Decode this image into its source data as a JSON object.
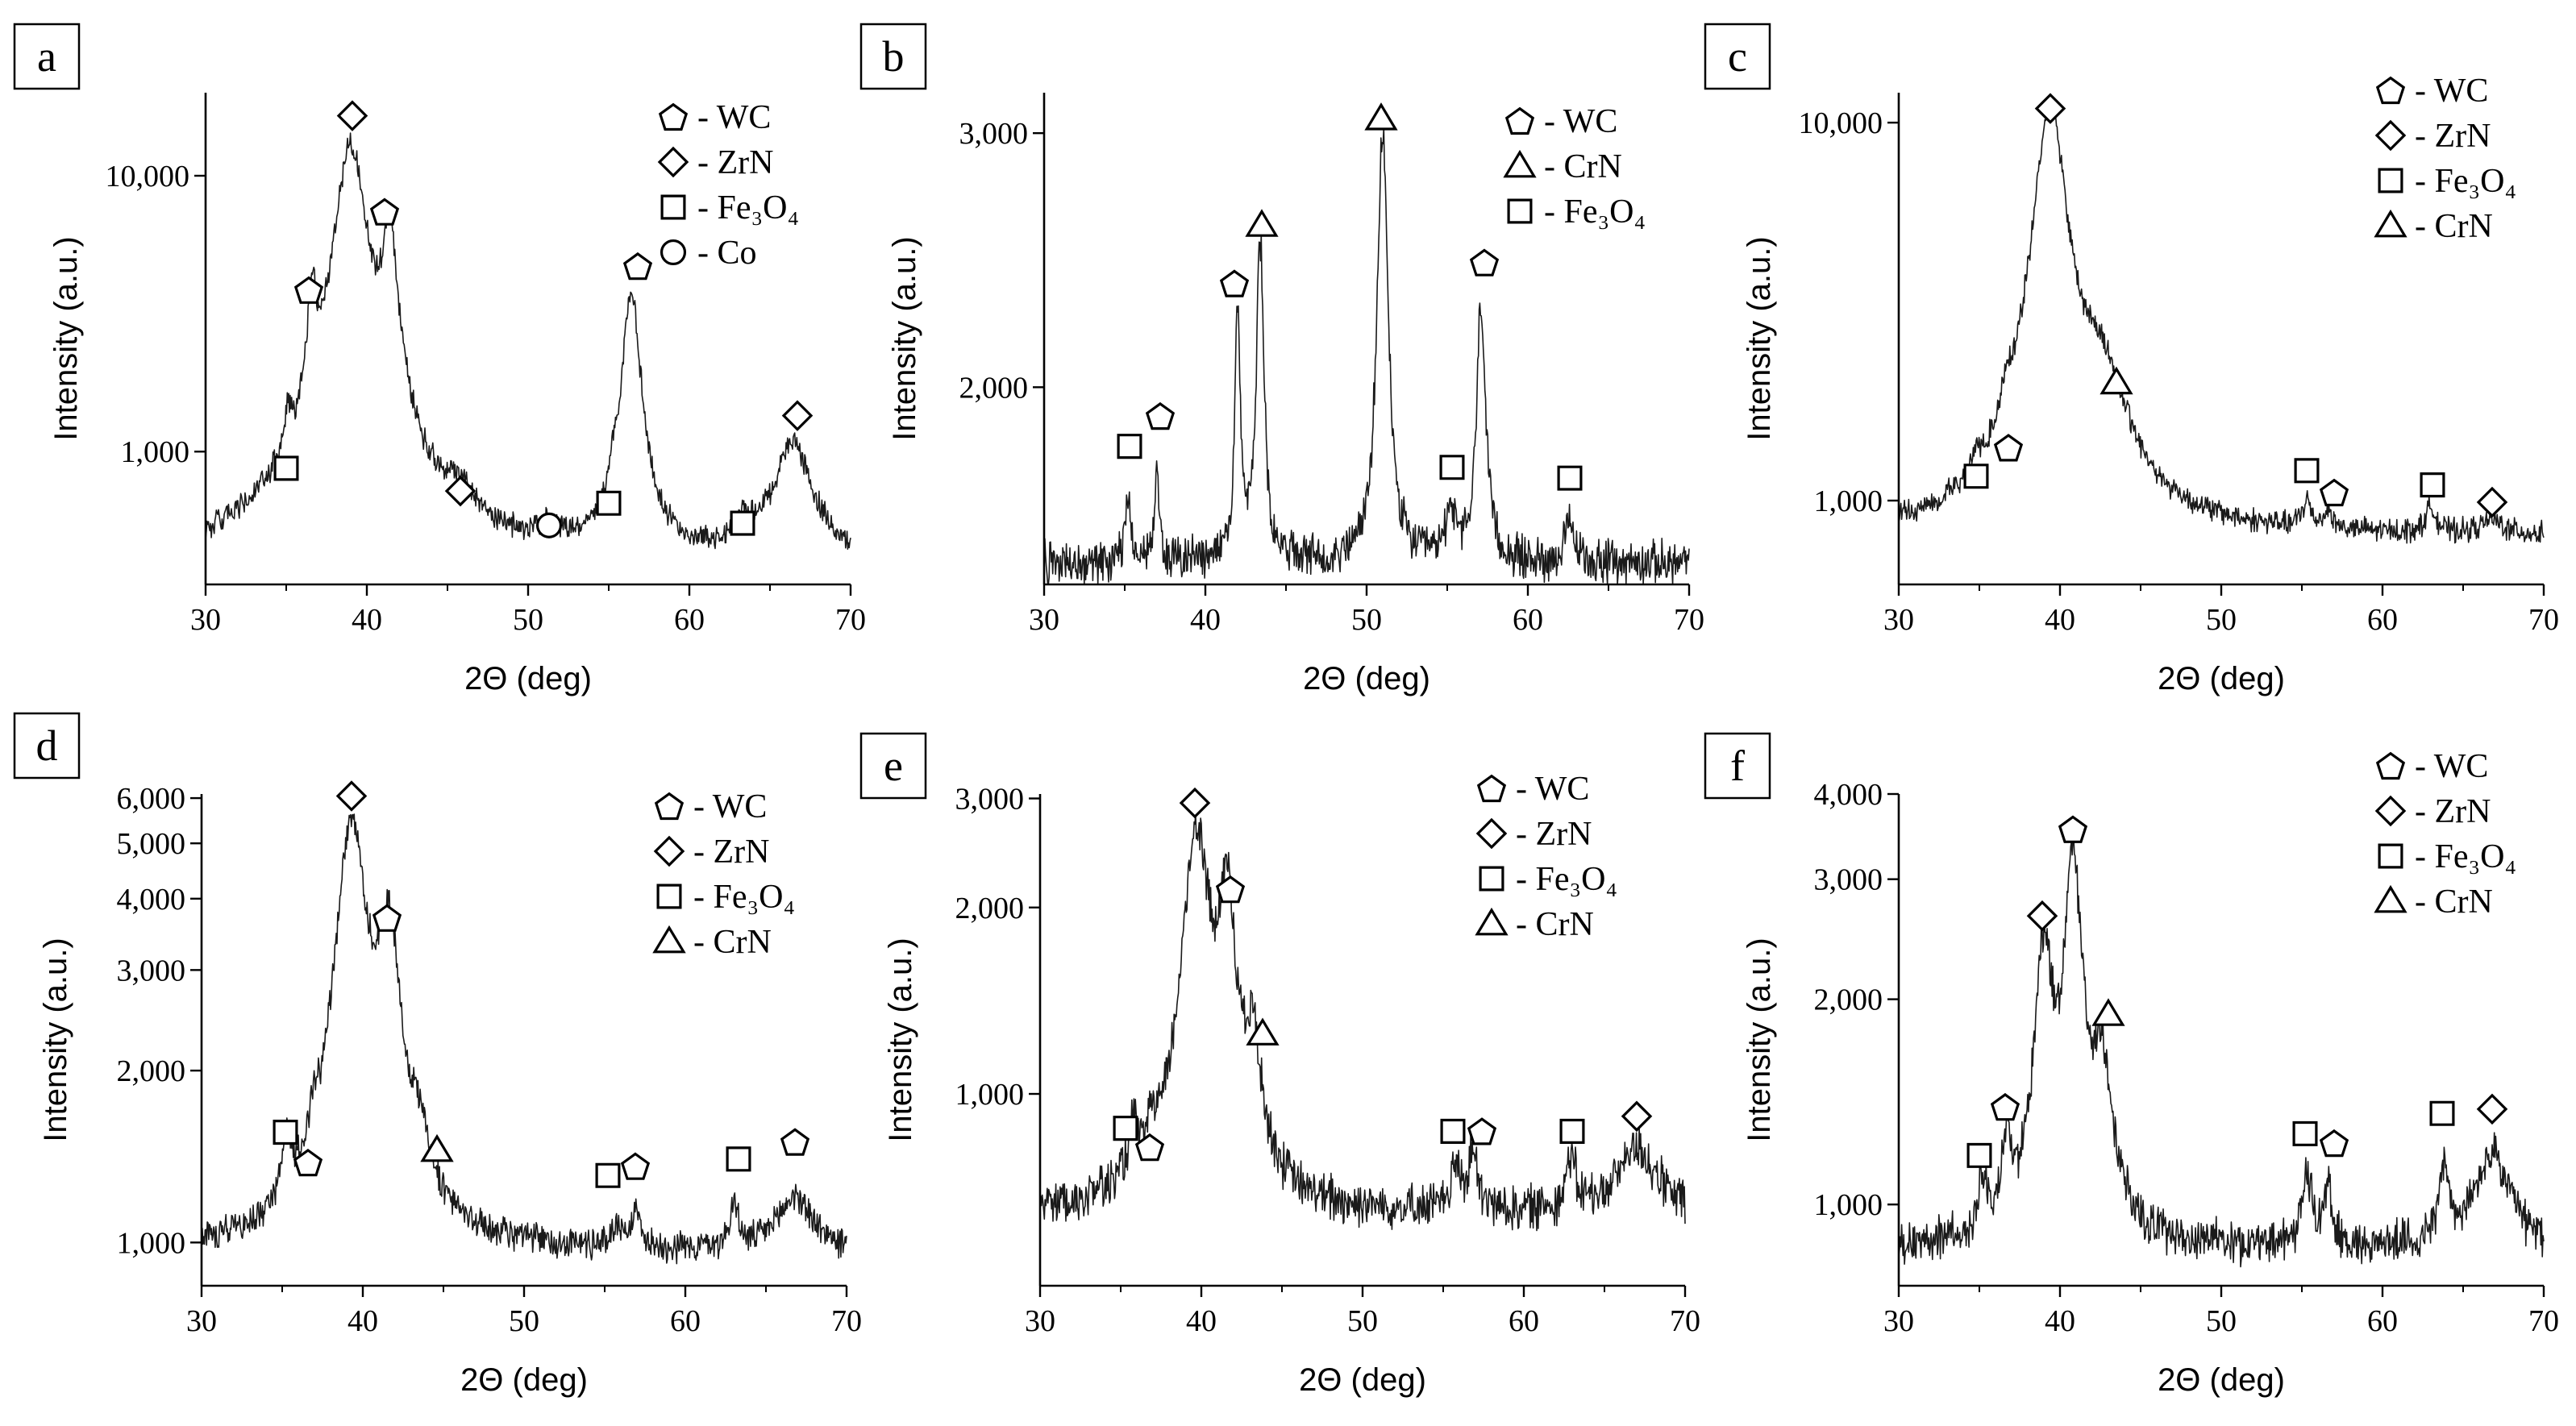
{
  "figure": {
    "markers": {
      "WC": "pentagon",
      "ZrN": "diamond",
      "Fe3O4": "square",
      "Co": "circle",
      "CrN": "triangle"
    },
    "line_color": "#1a1a1a"
  },
  "chart_data": [
    {
      "type": "line",
      "panel": "a",
      "xlabel": "2Θ (deg)",
      "ylabel": "Intensity (a.u.)",
      "xlim": [
        30,
        70
      ],
      "xticks": [
        30,
        40,
        50,
        60,
        70
      ],
      "yscale": "log",
      "ylim": [
        330,
        20000
      ],
      "yticks": [
        1000,
        10000
      ],
      "ytick_labels": [
        "1,000",
        "10,000"
      ],
      "baseline": 390,
      "noise": 0.035,
      "legend": [
        {
          "label": "- WC",
          "marker": "pentagon"
        },
        {
          "label": "- ZrN",
          "marker": "diamond"
        },
        {
          "label": "- Fe₃O₄",
          "marker": "square"
        },
        {
          "label": "- Co",
          "marker": "circle"
        }
      ],
      "peaks": [
        {
          "x": 35.1,
          "y": 720,
          "w": 0.22
        },
        {
          "x": 36.6,
          "y": 2900,
          "w": 0.28
        },
        {
          "x": 39.0,
          "y": 13000,
          "w": 0.9
        },
        {
          "x": 41.4,
          "y": 5800,
          "w": 0.45
        },
        {
          "x": 45.8,
          "y": 560,
          "w": 0.9
        },
        {
          "x": 51.4,
          "y": 470,
          "w": 0.45
        },
        {
          "x": 55.3,
          "y": 530,
          "w": 0.25
        },
        {
          "x": 56.4,
          "y": 3800,
          "w": 0.5
        },
        {
          "x": 63.4,
          "y": 490,
          "w": 0.55
        },
        {
          "x": 66.4,
          "y": 1050,
          "w": 1.2
        }
      ],
      "annotations": [
        {
          "marker": "square",
          "x": 35.0,
          "y": 870
        },
        {
          "marker": "pentagon",
          "x": 36.4,
          "y": 3850
        },
        {
          "marker": "diamond",
          "x": 39.1,
          "y": 16500
        },
        {
          "marker": "pentagon",
          "x": 41.1,
          "y": 7400
        },
        {
          "marker": "diamond",
          "x": 45.8,
          "y": 720
        },
        {
          "marker": "circle",
          "x": 51.3,
          "y": 540
        },
        {
          "marker": "square",
          "x": 55.0,
          "y": 650
        },
        {
          "marker": "pentagon",
          "x": 56.8,
          "y": 4700
        },
        {
          "marker": "square",
          "x": 63.3,
          "y": 550
        },
        {
          "marker": "diamond",
          "x": 66.7,
          "y": 1350
        }
      ]
    },
    {
      "type": "line",
      "panel": "b",
      "xlabel": "2Θ (deg)",
      "ylabel": "Intensity (a.u.)",
      "xlim": [
        30,
        70
      ],
      "xticks": [
        30,
        40,
        50,
        60,
        70
      ],
      "yscale": "log",
      "ylim": [
        1460,
        3200
      ],
      "yticks": [
        2000,
        3000
      ],
      "ytick_labels": [
        "2,000",
        "3,000"
      ],
      "baseline": 1510,
      "noise": 0.012,
      "legend": [
        {
          "label": "- WC",
          "marker": "pentagon"
        },
        {
          "label": "- CrN",
          "marker": "triangle"
        },
        {
          "label": "- Fe₃O₄",
          "marker": "square"
        }
      ],
      "peaks": [
        {
          "x": 35.2,
          "y": 1680,
          "w": 0.22
        },
        {
          "x": 37.0,
          "y": 1760,
          "w": 0.16
        },
        {
          "x": 42.0,
          "y": 2240,
          "w": 0.2
        },
        {
          "x": 43.4,
          "y": 2530,
          "w": 0.25
        },
        {
          "x": 51.0,
          "y": 3000,
          "w": 0.35
        },
        {
          "x": 55.2,
          "y": 1640,
          "w": 0.35
        },
        {
          "x": 57.1,
          "y": 2290,
          "w": 0.3
        },
        {
          "x": 62.6,
          "y": 1600,
          "w": 0.35
        }
      ],
      "annotations": [
        {
          "marker": "square",
          "x": 35.3,
          "y": 1820
        },
        {
          "marker": "pentagon",
          "x": 37.2,
          "y": 1910
        },
        {
          "marker": "pentagon",
          "x": 41.8,
          "y": 2360
        },
        {
          "marker": "triangle",
          "x": 43.5,
          "y": 2590
        },
        {
          "marker": "triangle",
          "x": 50.9,
          "y": 3070
        },
        {
          "marker": "square",
          "x": 55.3,
          "y": 1760
        },
        {
          "marker": "pentagon",
          "x": 57.3,
          "y": 2440
        },
        {
          "marker": "square",
          "x": 62.6,
          "y": 1730
        }
      ]
    },
    {
      "type": "line",
      "panel": "c",
      "xlabel": "2Θ (deg)",
      "ylabel": "Intensity (a.u.)",
      "xlim": [
        30,
        70
      ],
      "xticks": [
        30,
        40,
        50,
        60,
        70
      ],
      "yscale": "log",
      "ylim": [
        600,
        12000
      ],
      "yticks": [
        1000,
        10000
      ],
      "ytick_labels": [
        "1,000",
        "10,000"
      ],
      "baseline": 800,
      "noise": 0.025,
      "legend": [
        {
          "label": "- WC",
          "marker": "pentagon"
        },
        {
          "label": "- ZrN",
          "marker": "diamond"
        },
        {
          "label": "- Fe₃O₄",
          "marker": "square"
        },
        {
          "label": "- CrN",
          "marker": "triangle"
        }
      ],
      "peaks": [
        {
          "x": 34.8,
          "y": 930,
          "w": 0.25
        },
        {
          "x": 36.7,
          "y": 1150,
          "w": 0.35
        },
        {
          "x": 39.4,
          "y": 11000,
          "w": 0.95
        },
        {
          "x": 42.5,
          "y": 1900,
          "w": 1.6
        },
        {
          "x": 55.3,
          "y": 950,
          "w": 0.3
        },
        {
          "x": 56.6,
          "y": 900,
          "w": 0.3
        },
        {
          "x": 63.0,
          "y": 940,
          "w": 0.35
        },
        {
          "x": 66.8,
          "y": 870,
          "w": 0.8
        }
      ],
      "annotations": [
        {
          "marker": "square",
          "x": 34.8,
          "y": 1160
        },
        {
          "marker": "pentagon",
          "x": 36.8,
          "y": 1380
        },
        {
          "marker": "diamond",
          "x": 39.4,
          "y": 10900
        },
        {
          "marker": "triangle",
          "x": 43.5,
          "y": 2050
        },
        {
          "marker": "square",
          "x": 55.3,
          "y": 1200
        },
        {
          "marker": "pentagon",
          "x": 57.0,
          "y": 1050
        },
        {
          "marker": "square",
          "x": 63.1,
          "y": 1100
        },
        {
          "marker": "diamond",
          "x": 66.8,
          "y": 990
        }
      ]
    },
    {
      "type": "line",
      "panel": "d",
      "xlabel": "2Θ (deg)",
      "ylabel": "Intensity (a.u.)",
      "xlim": [
        30,
        70
      ],
      "xticks": [
        30,
        40,
        50,
        60,
        70
      ],
      "yscale": "log",
      "ylim": [
        840,
        6100
      ],
      "yticks": [
        1000,
        2000,
        3000,
        4000,
        5000,
        6000
      ],
      "ytick_labels": [
        "1,000",
        "2,000",
        "3,000",
        "4,000",
        "5,000",
        "6,000"
      ],
      "baseline": 960,
      "noise": 0.022,
      "legend": [
        {
          "label": "- WC",
          "marker": "pentagon"
        },
        {
          "label": "- ZrN",
          "marker": "diamond"
        },
        {
          "label": "- Fe₃O₄",
          "marker": "square"
        },
        {
          "label": "- CrN",
          "marker": "triangle"
        }
      ],
      "peaks": [
        {
          "x": 35.3,
          "y": 1280,
          "w": 0.35
        },
        {
          "x": 36.9,
          "y": 1160,
          "w": 0.3
        },
        {
          "x": 39.3,
          "y": 5300,
          "w": 1.0
        },
        {
          "x": 41.6,
          "y": 3200,
          "w": 0.75
        },
        {
          "x": 43.5,
          "y": 1250,
          "w": 0.8
        },
        {
          "x": 55.8,
          "y": 1050,
          "w": 0.35
        },
        {
          "x": 56.9,
          "y": 1100,
          "w": 0.35
        },
        {
          "x": 63.0,
          "y": 1150,
          "w": 0.3
        },
        {
          "x": 66.8,
          "y": 1200,
          "w": 1.2
        }
      ],
      "annotations": [
        {
          "marker": "square",
          "x": 35.2,
          "y": 1560
        },
        {
          "marker": "pentagon",
          "x": 36.6,
          "y": 1380
        },
        {
          "marker": "diamond",
          "x": 39.3,
          "y": 6050
        },
        {
          "marker": "pentagon",
          "x": 41.5,
          "y": 3700
        },
        {
          "marker": "triangle",
          "x": 44.6,
          "y": 1450
        },
        {
          "marker": "square",
          "x": 55.2,
          "y": 1310
        },
        {
          "marker": "pentagon",
          "x": 56.9,
          "y": 1360
        },
        {
          "marker": "square",
          "x": 63.3,
          "y": 1400
        },
        {
          "marker": "pentagon",
          "x": 66.8,
          "y": 1500
        }
      ]
    },
    {
      "type": "line",
      "panel": "e",
      "xlabel": "2Θ (deg)",
      "ylabel": "Intensity (a.u.)",
      "xlim": [
        30,
        70
      ],
      "xticks": [
        30,
        40,
        50,
        60,
        70
      ],
      "yscale": "log",
      "ylim": [
        490,
        3050
      ],
      "yticks": [
        1000,
        2000,
        3000
      ],
      "ytick_labels": [
        "1,000",
        "2,000",
        "3,000"
      ],
      "baseline": 640,
      "noise": 0.03,
      "legend": [
        {
          "label": "- WC",
          "marker": "pentagon"
        },
        {
          "label": "- ZrN",
          "marker": "diamond"
        },
        {
          "label": "- Fe₃O₄",
          "marker": "square"
        },
        {
          "label": "- CrN",
          "marker": "triangle"
        }
      ],
      "peaks": [
        {
          "x": 35.8,
          "y": 780,
          "w": 0.45
        },
        {
          "x": 37.0,
          "y": 730,
          "w": 0.3
        },
        {
          "x": 39.7,
          "y": 2650,
          "w": 0.9
        },
        {
          "x": 41.6,
          "y": 1950,
          "w": 0.55
        },
        {
          "x": 43.2,
          "y": 1100,
          "w": 0.6
        },
        {
          "x": 55.8,
          "y": 760,
          "w": 0.3
        },
        {
          "x": 56.8,
          "y": 800,
          "w": 0.3
        },
        {
          "x": 62.9,
          "y": 780,
          "w": 0.35
        },
        {
          "x": 67.0,
          "y": 820,
          "w": 1.3
        }
      ],
      "annotations": [
        {
          "marker": "square",
          "x": 35.3,
          "y": 880
        },
        {
          "marker": "pentagon",
          "x": 36.8,
          "y": 820
        },
        {
          "marker": "diamond",
          "x": 39.6,
          "y": 2950
        },
        {
          "marker": "pentagon",
          "x": 41.8,
          "y": 2140
        },
        {
          "marker": "triangle",
          "x": 43.8,
          "y": 1250
        },
        {
          "marker": "square",
          "x": 55.6,
          "y": 870
        },
        {
          "marker": "pentagon",
          "x": 57.4,
          "y": 870
        },
        {
          "marker": "square",
          "x": 63.0,
          "y": 870
        },
        {
          "marker": "diamond",
          "x": 67.0,
          "y": 920
        }
      ]
    },
    {
      "type": "line",
      "panel": "f",
      "xlabel": "2Θ (deg)",
      "ylabel": "Intensity (a.u.)",
      "xlim": [
        30,
        70
      ],
      "xticks": [
        30,
        40,
        50,
        60,
        70
      ],
      "yscale": "log",
      "ylim": [
        760,
        4000
      ],
      "yticks": [
        1000,
        2000,
        3000,
        4000
      ],
      "ytick_labels": [
        "1,000",
        "2,000",
        "3,000",
        "4,000"
      ],
      "baseline": 860,
      "noise": 0.025,
      "legend": [
        {
          "label": "- WC",
          "marker": "pentagon"
        },
        {
          "label": "- ZrN",
          "marker": "diamond"
        },
        {
          "label": "- Fe₃O₄",
          "marker": "square"
        },
        {
          "label": "- CrN",
          "marker": "triangle"
        }
      ],
      "peaks": [
        {
          "x": 35.2,
          "y": 1040,
          "w": 0.3
        },
        {
          "x": 36.7,
          "y": 1150,
          "w": 0.35
        },
        {
          "x": 39.0,
          "y": 2300,
          "w": 0.6
        },
        {
          "x": 40.8,
          "y": 3100,
          "w": 0.6
        },
        {
          "x": 42.6,
          "y": 1500,
          "w": 0.7
        },
        {
          "x": 55.3,
          "y": 1100,
          "w": 0.35
        },
        {
          "x": 56.6,
          "y": 1050,
          "w": 0.3
        },
        {
          "x": 63.8,
          "y": 1100,
          "w": 0.35
        },
        {
          "x": 66.8,
          "y": 1180,
          "w": 1.2
        }
      ],
      "annotations": [
        {
          "marker": "square",
          "x": 35.0,
          "y": 1180
        },
        {
          "marker": "pentagon",
          "x": 36.6,
          "y": 1390
        },
        {
          "marker": "diamond",
          "x": 38.9,
          "y": 2650
        },
        {
          "marker": "pentagon",
          "x": 40.8,
          "y": 3550
        },
        {
          "marker": "triangle",
          "x": 43.0,
          "y": 1900
        },
        {
          "marker": "square",
          "x": 55.2,
          "y": 1270
        },
        {
          "marker": "pentagon",
          "x": 57.0,
          "y": 1230
        },
        {
          "marker": "square",
          "x": 63.7,
          "y": 1360
        },
        {
          "marker": "diamond",
          "x": 66.8,
          "y": 1380
        }
      ]
    }
  ]
}
